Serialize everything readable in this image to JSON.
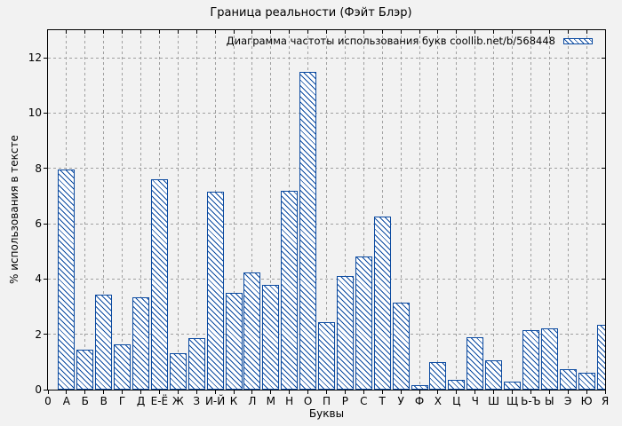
{
  "chart_data": {
    "type": "bar",
    "title": "Граница реальности (Фэйт Блэр)",
    "legend": "Диаграмма частоты использования букв coollib.net/b/568448",
    "legend_position": "top-right-inside",
    "xlabel": "Буквы",
    "ylabel": "% использования в тексте",
    "x_origin_label": "0",
    "categories": [
      "А",
      "Б",
      "В",
      "Г",
      "Д",
      "Е-Ё",
      "Ж",
      "З",
      "И-Й",
      "К",
      "Л",
      "М",
      "Н",
      "О",
      "П",
      "Р",
      "С",
      "Т",
      "У",
      "Ф",
      "Х",
      "Ц",
      "Ч",
      "Ш",
      "Щ",
      "Ь-Ъ",
      "Ы",
      "Э",
      "Ю",
      "Я"
    ],
    "values": [
      7.95,
      1.45,
      3.45,
      1.65,
      3.35,
      7.6,
      1.3,
      1.85,
      7.15,
      3.5,
      4.25,
      3.8,
      7.2,
      11.5,
      2.45,
      4.1,
      4.8,
      6.25,
      3.15,
      0.15,
      1.0,
      0.35,
      1.9,
      1.05,
      0.3,
      2.15,
      2.2,
      0.75,
      0.6,
      2.35
    ],
    "ylim": [
      0,
      13
    ],
    "yticks": [
      0,
      2,
      4,
      6,
      8,
      10,
      12
    ],
    "grid": true,
    "bar_style": "blue-diagonal-hatch"
  },
  "colors": {
    "bar": "#0b4aa0",
    "bar_fill": "#ffffff",
    "grid": "#a0a0a0",
    "axis": "#000000",
    "background": "#f2f2f2",
    "text": "#000000"
  }
}
